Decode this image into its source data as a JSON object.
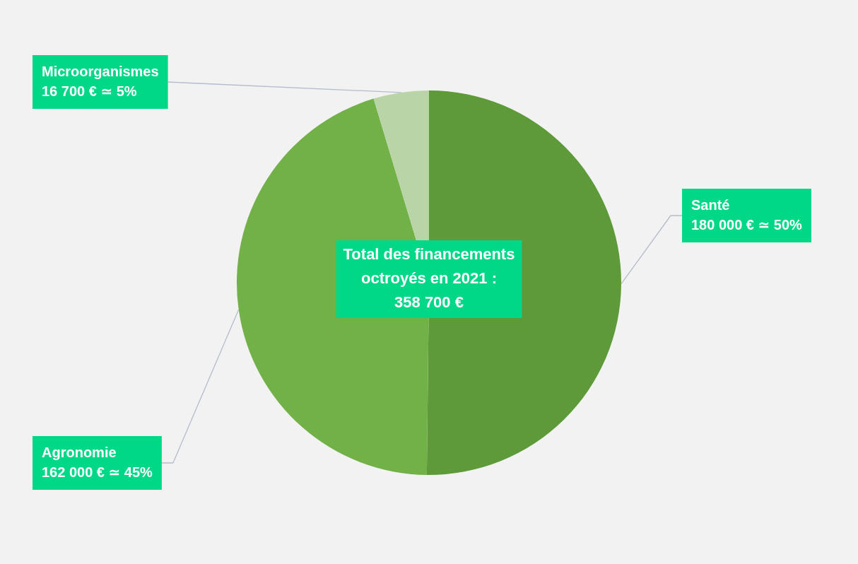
{
  "chart_data": {
    "type": "pie",
    "categories": [
      "Santé",
      "Agronomie",
      "Microorganismes"
    ],
    "values": [
      180000,
      162000,
      16700
    ],
    "colors": [
      "#5e9a3a",
      "#72b048",
      "#b9d5a8"
    ],
    "value_labels": [
      "180 000 € ≃ 50%",
      "162 000 € ≃ 45%",
      "16 700 € ≃ 5%"
    ],
    "annotations": [
      "Total des financements octroyés en 2021 : 358 700 €"
    ]
  }
}
